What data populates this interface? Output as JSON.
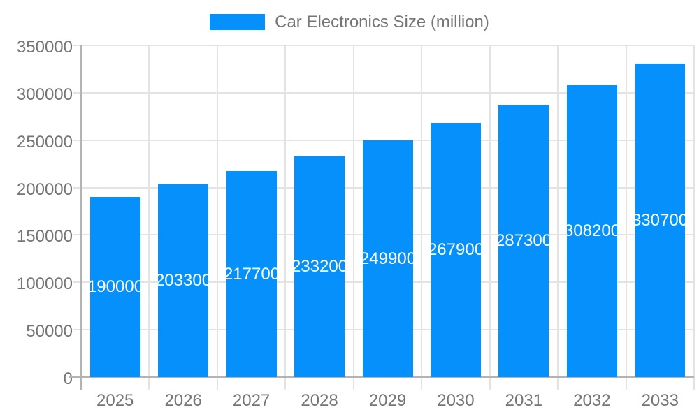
{
  "legend": {
    "label": "Car Electronics Size (million)",
    "swatch_color": "#0690FB"
  },
  "colors": {
    "bar": "#0690FB",
    "bar_label_text": "#ffffff",
    "axis_text": "#757575",
    "gridline": "#e3e3e3",
    "axis_line": "#b3b3b3",
    "background": "#ffffff"
  },
  "chart_data": {
    "type": "bar",
    "title": "",
    "xlabel": "",
    "ylabel": "",
    "categories": [
      "2025",
      "2026",
      "2027",
      "2028",
      "2029",
      "2030",
      "2031",
      "2032",
      "2033"
    ],
    "series": [
      {
        "name": "Car Electronics Size (million)",
        "values": [
          190000,
          203300,
          217700,
          233200,
          249900,
          267900,
          287300,
          308200,
          330700
        ],
        "color": "#0690FB"
      }
    ],
    "bar_value_labels": [
      "190000",
      "203300",
      "217700",
      "233200",
      "249900",
      "267900",
      "287300",
      "308200",
      "330700"
    ],
    "ylim": [
      0,
      350000
    ],
    "yticks": [
      0,
      50000,
      100000,
      150000,
      200000,
      250000,
      300000,
      350000
    ],
    "ytick_labels": [
      "0",
      "50000",
      "100000",
      "150000",
      "200000",
      "250000",
      "300000",
      "350000"
    ],
    "grid": true,
    "vertical_gridlines": true,
    "legend_position": "top-center",
    "value_labels_position": "inside-center",
    "value_labels_color": "#ffffff"
  }
}
